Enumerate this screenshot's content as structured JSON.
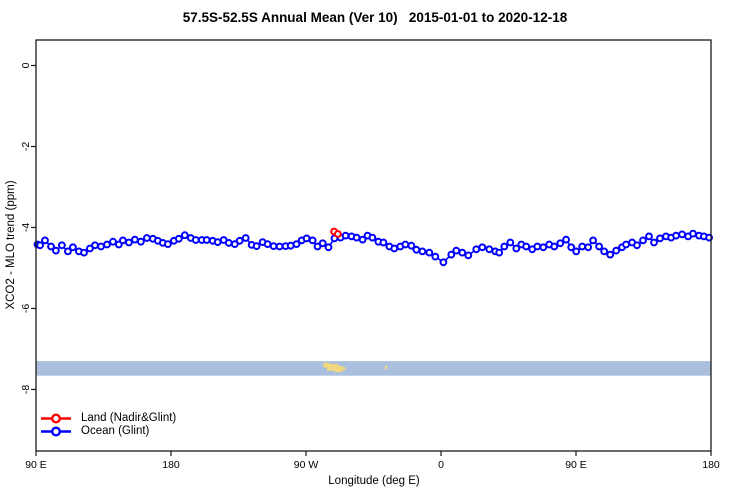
{
  "chart_data": {
    "type": "line",
    "title": "57.5S-52.5S Annual Mean (Ver 10)   2015-01-01 to 2020-12-18",
    "xlabel": "Longitude (deg E)",
    "ylabel": "XCO2 - MLO trend (ppm)",
    "xlim": [
      90,
      540
    ],
    "ylim": [
      -9.52,
      0.63
    ],
    "grid": false,
    "legend_position": "bottom-left-inside",
    "x_ticks": [
      {
        "lon": 90,
        "label": "90 E"
      },
      {
        "lon": 180,
        "label": "180"
      },
      {
        "lon": 270,
        "label": "90 W"
      },
      {
        "lon": 360,
        "label": "0"
      },
      {
        "lon": 450,
        "label": "90 E"
      },
      {
        "lon": 540,
        "label": "180"
      }
    ],
    "y_ticks": [
      {
        "v": 0,
        "label": "0"
      },
      {
        "v": -2,
        "label": "-2"
      },
      {
        "v": -4,
        "label": "-4"
      },
      {
        "v": -6,
        "label": "-6"
      },
      {
        "v": -8,
        "label": "-8"
      }
    ],
    "series": [
      {
        "name": "Land (Nadir&Glint)",
        "color": "#ff0000",
        "marker": "open-circle",
        "points": [
          [
            288.7,
            -4.1
          ],
          [
            291.3,
            -4.16
          ]
        ]
      },
      {
        "name": "Ocean (Glint)",
        "color": "#0000ff",
        "marker": "open-circle",
        "points": [
          [
            91.0,
            -4.42
          ],
          [
            92.7,
            -4.44
          ],
          [
            96.0,
            -4.32
          ],
          [
            100.0,
            -4.47
          ],
          [
            103.3,
            -4.57
          ],
          [
            107.3,
            -4.44
          ],
          [
            111.3,
            -4.59
          ],
          [
            114.6,
            -4.49
          ],
          [
            118.6,
            -4.59
          ],
          [
            122.0,
            -4.62
          ],
          [
            125.9,
            -4.52
          ],
          [
            129.3,
            -4.44
          ],
          [
            133.3,
            -4.47
          ],
          [
            137.3,
            -4.42
          ],
          [
            141.3,
            -4.35
          ],
          [
            145.2,
            -4.42
          ],
          [
            147.9,
            -4.32
          ],
          [
            151.9,
            -4.37
          ],
          [
            155.9,
            -4.3
          ],
          [
            159.9,
            -4.35
          ],
          [
            163.9,
            -4.26
          ],
          [
            167.9,
            -4.28
          ],
          [
            171.2,
            -4.33
          ],
          [
            174.5,
            -4.38
          ],
          [
            177.9,
            -4.41
          ],
          [
            181.9,
            -4.33
          ],
          [
            185.2,
            -4.28
          ],
          [
            189.2,
            -4.19
          ],
          [
            193.2,
            -4.26
          ],
          [
            196.5,
            -4.31
          ],
          [
            200.5,
            -4.31
          ],
          [
            203.8,
            -4.31
          ],
          [
            207.8,
            -4.33
          ],
          [
            211.1,
            -4.36
          ],
          [
            215.1,
            -4.31
          ],
          [
            218.5,
            -4.38
          ],
          [
            222.5,
            -4.41
          ],
          [
            225.8,
            -4.33
          ],
          [
            229.8,
            -4.26
          ],
          [
            233.8,
            -4.43
          ],
          [
            237.1,
            -4.46
          ],
          [
            241.1,
            -4.36
          ],
          [
            244.4,
            -4.41
          ],
          [
            248.4,
            -4.46
          ],
          [
            252.4,
            -4.47
          ],
          [
            256.4,
            -4.46
          ],
          [
            259.8,
            -4.45
          ],
          [
            263.7,
            -4.41
          ],
          [
            267.1,
            -4.32
          ],
          [
            270.4,
            -4.27
          ],
          [
            274.4,
            -4.32
          ],
          [
            277.7,
            -4.47
          ],
          [
            281.1,
            -4.39
          ],
          [
            285.0,
            -4.49
          ],
          [
            289.0,
            -4.27
          ],
          [
            293.0,
            -4.25
          ],
          [
            296.4,
            -4.2
          ],
          [
            300.4,
            -4.22
          ],
          [
            303.7,
            -4.25
          ],
          [
            307.7,
            -4.3
          ],
          [
            311.0,
            -4.2
          ],
          [
            314.3,
            -4.25
          ],
          [
            318.3,
            -4.35
          ],
          [
            321.6,
            -4.37
          ],
          [
            325.6,
            -4.47
          ],
          [
            328.9,
            -4.52
          ],
          [
            332.9,
            -4.47
          ],
          [
            336.3,
            -4.42
          ],
          [
            340.3,
            -4.45
          ],
          [
            343.6,
            -4.55
          ],
          [
            347.6,
            -4.59
          ],
          [
            352.2,
            -4.62
          ],
          [
            356.2,
            -4.72
          ],
          [
            361.6,
            -4.86
          ],
          [
            366.9,
            -4.67
          ],
          [
            370.2,
            -4.57
          ],
          [
            374.2,
            -4.62
          ],
          [
            378.2,
            -4.69
          ],
          [
            383.5,
            -4.54
          ],
          [
            387.5,
            -4.49
          ],
          [
            392.2,
            -4.54
          ],
          [
            396.2,
            -4.59
          ],
          [
            398.8,
            -4.62
          ],
          [
            402.2,
            -4.47
          ],
          [
            406.2,
            -4.37
          ],
          [
            410.2,
            -4.52
          ],
          [
            413.5,
            -4.42
          ],
          [
            416.8,
            -4.47
          ],
          [
            420.8,
            -4.54
          ],
          [
            424.2,
            -4.47
          ],
          [
            428.2,
            -4.49
          ],
          [
            432.1,
            -4.42
          ],
          [
            435.5,
            -4.47
          ],
          [
            439.5,
            -4.39
          ],
          [
            443.4,
            -4.3
          ],
          [
            446.8,
            -4.49
          ],
          [
            450.1,
            -4.59
          ],
          [
            454.1,
            -4.47
          ],
          [
            458.1,
            -4.49
          ],
          [
            461.4,
            -4.32
          ],
          [
            465.4,
            -4.47
          ],
          [
            468.8,
            -4.59
          ],
          [
            472.8,
            -4.67
          ],
          [
            476.8,
            -4.57
          ],
          [
            480.7,
            -4.49
          ],
          [
            483.4,
            -4.42
          ],
          [
            487.4,
            -4.37
          ],
          [
            490.7,
            -4.44
          ],
          [
            494.7,
            -4.32
          ],
          [
            498.7,
            -4.22
          ],
          [
            502.0,
            -4.37
          ],
          [
            506.0,
            -4.27
          ],
          [
            510.0,
            -4.22
          ],
          [
            513.4,
            -4.25
          ],
          [
            516.7,
            -4.2
          ],
          [
            520.7,
            -4.17
          ],
          [
            524.7,
            -4.22
          ],
          [
            528.0,
            -4.15
          ],
          [
            532.0,
            -4.2
          ],
          [
            535.3,
            -4.22
          ],
          [
            538.7,
            -4.25
          ]
        ]
      }
    ],
    "map_strip": {
      "description": "ocean/land map band for 57.5S-52.5S latitude zone",
      "value_top": -7.3,
      "value_bottom": -7.66,
      "ocean_color": "#aabfde",
      "land_color": "#f0d67d",
      "land_patches": [
        [
          281.5,
          285.5,
          -7.34,
          -7.46
        ],
        [
          284.0,
          291.5,
          -7.37,
          -7.54
        ],
        [
          289.0,
          294.5,
          -7.42,
          -7.57
        ],
        [
          294.5,
          296.5,
          -7.45,
          -7.51
        ],
        [
          322.6,
          324.2,
          -7.41,
          -7.5
        ]
      ]
    }
  },
  "legend": {
    "items": [
      {
        "label": "Land (Nadir&Glint)",
        "color": "#ff0000"
      },
      {
        "label": "Ocean (Glint)",
        "color": "#0000ff"
      }
    ]
  }
}
